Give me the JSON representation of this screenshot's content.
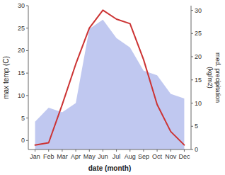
{
  "chart_data": {
    "type": "line",
    "categories": [
      "Jan",
      "Feb",
      "Mar",
      "Apr",
      "May",
      "Jun",
      "Jul",
      "Aug",
      "Sep",
      "Oct",
      "Nov",
      "Dec"
    ],
    "series": [
      {
        "type": "area",
        "axis": "y2",
        "color": "#c0c8f0",
        "values": [
          6,
          9,
          8,
          10,
          26,
          28,
          24,
          22,
          17,
          16,
          12,
          11
        ]
      },
      {
        "type": "line",
        "color": "#cc3333",
        "values": [
          -1,
          -0.5,
          8,
          17,
          25,
          29,
          27,
          26,
          18,
          8,
          2,
          -1
        ]
      }
    ],
    "x_label": "date (month)",
    "y_label": "max temp (C)",
    "y2_label": "med. precipitation\n(kg/m2)",
    "ylim": [
      -2,
      30
    ],
    "yticks": [
      0,
      5,
      10,
      15,
      20,
      25,
      30
    ],
    "y2lim": [
      0,
      31
    ],
    "y2ticks": [
      0,
      5,
      10,
      15,
      20,
      25,
      30
    ],
    "grid": false
  }
}
